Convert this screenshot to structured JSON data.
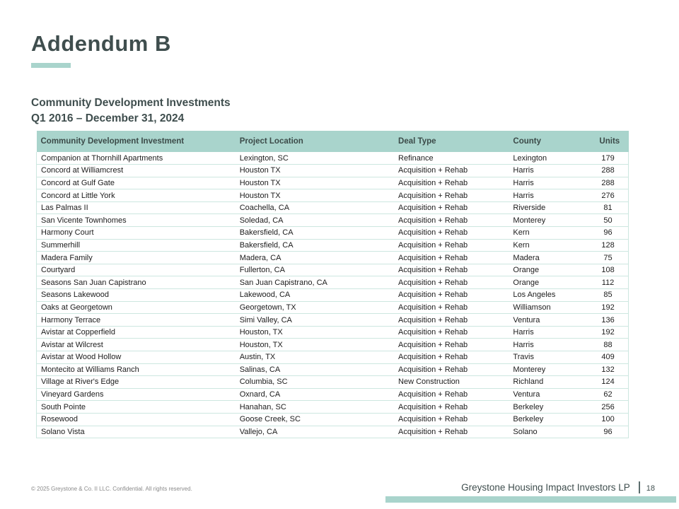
{
  "slide": {
    "title": "Addendum B",
    "section_title": "Community Development Investments",
    "date_range": "Q1 2016 – December 31, 2024"
  },
  "table": {
    "columns": [
      "Community Development Investment",
      "Project Location",
      "Deal Type",
      "County",
      "Units"
    ],
    "rows": [
      [
        "Companion at Thornhill Apartments",
        "Lexington, SC",
        "Refinance",
        "Lexington",
        "179"
      ],
      [
        "Concord at Williamcrest",
        "Houston TX",
        "Acquisition + Rehab",
        "Harris",
        "288"
      ],
      [
        "Concord at Gulf Gate",
        "Houston TX",
        "Acquisition + Rehab",
        "Harris",
        "288"
      ],
      [
        "Concord at Little York",
        "Houston TX",
        "Acquisition + Rehab",
        "Harris",
        "276"
      ],
      [
        "Las Palmas II",
        "Coachella, CA",
        "Acquisition + Rehab",
        "Riverside",
        "81"
      ],
      [
        "San Vicente Townhomes",
        "Soledad, CA",
        "Acquisition + Rehab",
        "Monterey",
        "50"
      ],
      [
        "Harmony Court",
        "Bakersfield, CA",
        "Acquisition + Rehab",
        "Kern",
        "96"
      ],
      [
        "Summerhill",
        "Bakersfield, CA",
        "Acquisition + Rehab",
        "Kern",
        "128"
      ],
      [
        "Madera Family",
        "Madera, CA",
        "Acquisition + Rehab",
        "Madera",
        "75"
      ],
      [
        "Courtyard",
        "Fullerton, CA",
        "Acquisition + Rehab",
        "Orange",
        "108"
      ],
      [
        "Seasons San Juan Capistrano",
        "San Juan Capistrano, CA",
        "Acquisition + Rehab",
        "Orange",
        "112"
      ],
      [
        "Seasons Lakewood",
        "Lakewood, CA",
        "Acquisition + Rehab",
        "Los Angeles",
        "85"
      ],
      [
        "Oaks at Georgetown",
        "Georgetown, TX",
        "Acquisition + Rehab",
        "Williamson",
        "192"
      ],
      [
        "Harmony Terrace",
        "Simi Valley, CA",
        "Acquisition + Rehab",
        "Ventura",
        "136"
      ],
      [
        "Avistar at Copperfield",
        "Houston, TX",
        "Acquisition + Rehab",
        "Harris",
        "192"
      ],
      [
        "Avistar at Wilcrest",
        "Houston, TX",
        "Acquisition + Rehab",
        "Harris",
        "88"
      ],
      [
        "Avistar at Wood Hollow",
        "Austin, TX",
        "Acquisition + Rehab",
        "Travis",
        "409"
      ],
      [
        "Montecito at Williams Ranch",
        "Salinas, CA",
        "Acquisition + Rehab",
        "Monterey",
        "132"
      ],
      [
        "Village at River's Edge",
        "Columbia, SC",
        "New Construction",
        "Richland",
        "124"
      ],
      [
        "Vineyard Gardens",
        "Oxnard, CA",
        "Acquisition + Rehab",
        "Ventura",
        "62"
      ],
      [
        "South Pointe",
        "Hanahan, SC",
        "Acquisition + Rehab",
        "Berkeley",
        "256"
      ],
      [
        "Rosewood",
        "Goose Creek, SC",
        "Acquisition + Rehab",
        "Berkeley",
        "100"
      ],
      [
        "Solano Vista",
        "Vallejo, CA",
        "Acquisition + Rehab",
        "Solano",
        "96"
      ]
    ]
  },
  "footer": {
    "copyright": "© 2025 Greystone & Co. II LLC. Confidential. All rights reserved.",
    "company": "Greystone Housing Impact Investors LP",
    "page_number": "18"
  },
  "colors": {
    "accent_teal": "#a9d4cc",
    "heading_text": "#3f4e4e",
    "body_text": "#1c1c1c",
    "row_border": "#cde7e0",
    "footer_gray": "#8a8a8a"
  }
}
